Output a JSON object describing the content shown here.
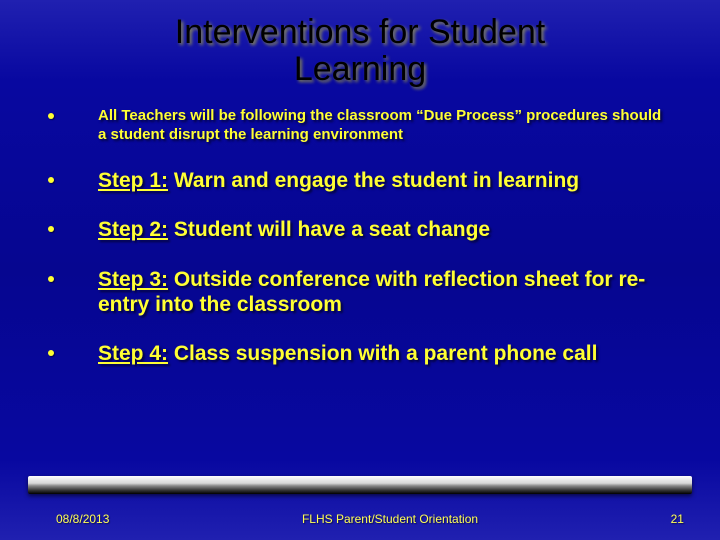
{
  "title": "Interventions for Student\nLearning",
  "intro": "All Teachers will be following the classroom “Due Process” procedures should a student disrupt the learning environment",
  "steps": [
    {
      "label": "Step 1:",
      "text": "  Warn and engage the student in learning"
    },
    {
      "label": "Step 2:",
      "text": "  Student will have a seat change"
    },
    {
      "label": "Step 3:",
      "text": " Outside conference with reflection sheet for re-entry into the classroom"
    },
    {
      "label": "Step 4:",
      "text": "  Class suspension with a parent phone call"
    }
  ],
  "footer": {
    "date": "08/8/2013",
    "center": "FLHS Parent/Student Orientation",
    "page": "21"
  },
  "colors": {
    "background": "#0808a0",
    "title": "#000000",
    "bullet_text": "#ffff33",
    "footer_text": "#ffff55"
  }
}
